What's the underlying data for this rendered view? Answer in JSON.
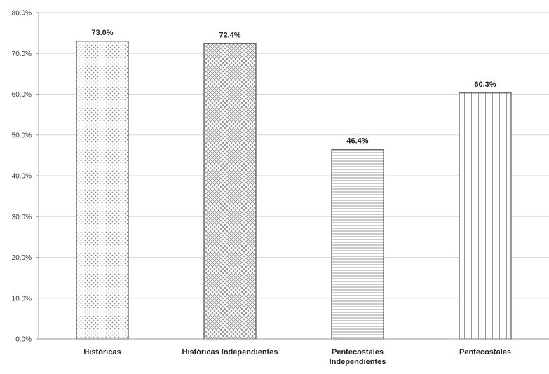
{
  "chart_data": {
    "type": "bar",
    "title": "",
    "xlabel": "",
    "ylabel": "",
    "categories": [
      [
        "Históricas"
      ],
      [
        "Históricas Independientes"
      ],
      [
        "Pentecostales",
        "Independientes"
      ],
      [
        "Pentecostales"
      ]
    ],
    "values": [
      73.0,
      72.4,
      46.4,
      60.3
    ],
    "data_labels": [
      "73.0%",
      "72.4%",
      "46.4%",
      "60.3%"
    ],
    "patterns": [
      "dots",
      "diagonal-hatch",
      "horizontal-lines",
      "vertical-lines"
    ],
    "ylim": [
      0,
      80
    ],
    "yticks": [
      0,
      10,
      20,
      30,
      40,
      50,
      60,
      70,
      80
    ],
    "ytick_labels": [
      "0.0%",
      "10.0%",
      "20.0%",
      "30.0%",
      "40.0%",
      "50.0%",
      "60.0%",
      "70.0%",
      "80.0%"
    ],
    "grid": true,
    "legend": "none",
    "colors": {
      "bar_fill": "#ffffff",
      "bar_stroke": "#555555",
      "pattern": "#8a8a8a",
      "grid": "#d9d9d9",
      "axis": "#999999"
    }
  }
}
